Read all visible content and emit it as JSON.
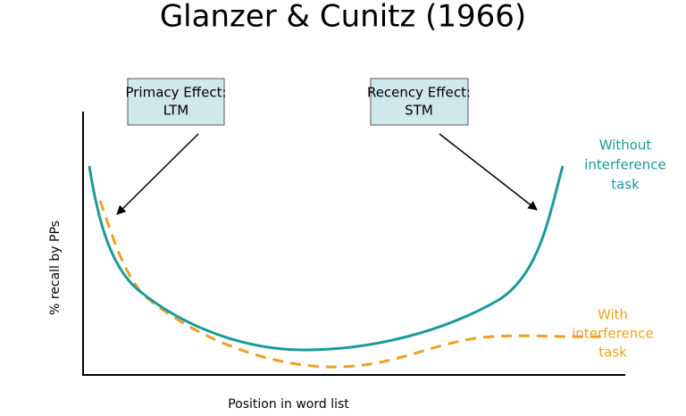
{
  "title": "Glanzer & Cunitz (1966)",
  "boxes": [
    {
      "lines": [
        "Primacy Effect:",
        "LTM"
      ]
    },
    {
      "lines": [
        "Recency Effect:",
        "STM"
      ]
    }
  ],
  "y_axis_label": "% recall by PPs",
  "x_axis_label": "Position in word list",
  "legend": [
    {
      "lines": [
        "Without",
        "interference",
        "task"
      ]
    },
    {
      "lines": [
        "With",
        "interference",
        "task"
      ]
    }
  ]
}
